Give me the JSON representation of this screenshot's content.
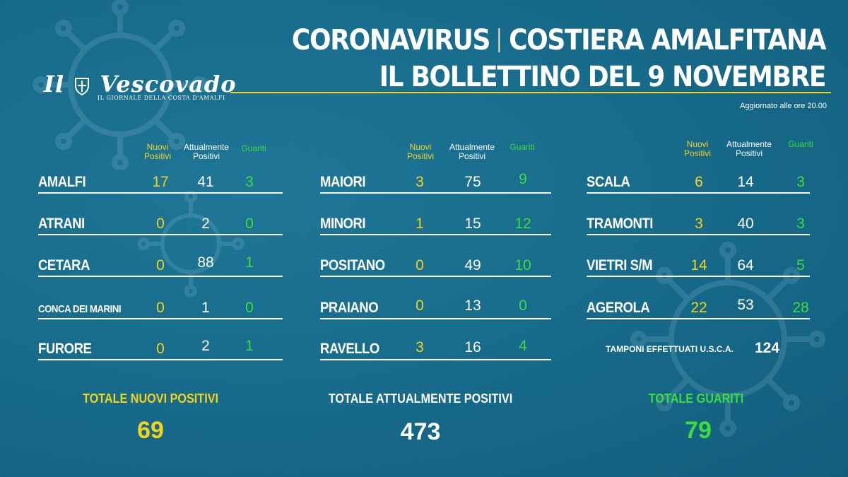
{
  "logo": {
    "title_left": "Il",
    "title_right": "Vescovado",
    "subtitle": "IL GIORNALE DELLA COSTA D'AMALFI"
  },
  "header": {
    "left": "CORONAVIRUS",
    "right": "COSTIERA AMALFITANA",
    "line2": "IL BOLLETTINO DEL 9 NOVEMBRE"
  },
  "updated": "Aggiornato alle ore 20.00",
  "column_headers": {
    "new_line1": "Nuovi",
    "new_line2": "Positivi",
    "active_line1": "Attualmente",
    "active_line2": "Positivi",
    "recovered": "Guariti"
  },
  "groups": [
    {
      "rows": [
        {
          "name": "AMALFI",
          "new": "17",
          "active": "41",
          "recovered": "3"
        },
        {
          "name": "ATRANI",
          "new": "0",
          "active": "2",
          "recovered": "0"
        },
        {
          "name": "CETARA",
          "new": "0",
          "active": "88",
          "recovered": "1"
        },
        {
          "name": "CONCA DEI MARINI",
          "new": "0",
          "active": "1",
          "recovered": "0"
        },
        {
          "name": "FURORE",
          "new": "0",
          "active": "2",
          "recovered": "1"
        }
      ]
    },
    {
      "rows": [
        {
          "name": "MAIORI",
          "new": "3",
          "active": "75",
          "recovered": "9"
        },
        {
          "name": "MINORI",
          "new": "1",
          "active": "15",
          "recovered": "12"
        },
        {
          "name": "POSITANO",
          "new": "0",
          "active": "49",
          "recovered": "10"
        },
        {
          "name": "PRAIANO",
          "new": "0",
          "active": "13",
          "recovered": "0"
        },
        {
          "name": "RAVELLO",
          "new": "3",
          "active": "16",
          "recovered": "4"
        }
      ]
    },
    {
      "rows": [
        {
          "name": "SCALA",
          "new": "6",
          "active": "14",
          "recovered": "3"
        },
        {
          "name": "TRAMONTI",
          "new": "3",
          "active": "40",
          "recovered": "3"
        },
        {
          "name": "VIETRI S/M",
          "new": "14",
          "active": "64",
          "recovered": "5"
        },
        {
          "name": "AGEROLA",
          "new": "22",
          "active": "53",
          "recovered": "28"
        }
      ]
    }
  ],
  "tamponi": {
    "label": "TAMPONI  EFFETTUATI U.S.C.A.",
    "value": "124"
  },
  "totals": {
    "new_label": "TOTALE NUOVI POSITIVI",
    "new_value": "69",
    "active_label": "TOTALE ATTUALMENTE POSITIVI",
    "active_value": "473",
    "recovered_label": "TOTALE GUARITI",
    "recovered_value": "79"
  },
  "colors": {
    "background": "#186c8c",
    "yellow": "#f2d31c",
    "green": "#3ddc3d"
  }
}
